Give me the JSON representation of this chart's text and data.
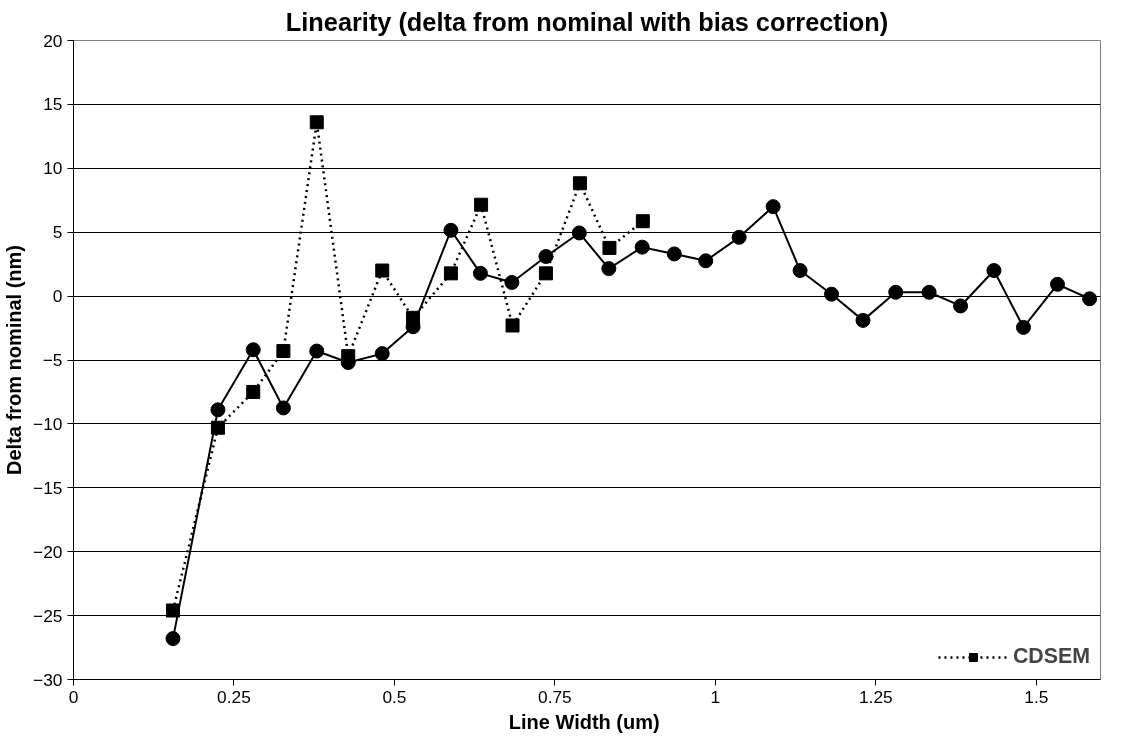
{
  "chart_data": {
    "type": "line",
    "title": "Linearity (delta from nominal with bias correction)",
    "xlabel": "Line Width  (um)",
    "ylabel": "Delta from nominal (nm)",
    "xlim": [
      0,
      1.6
    ],
    "xticks": [
      0,
      0.25,
      0.5,
      0.75,
      1,
      1.25,
      1.5
    ],
    "ylim": [
      -30,
      20
    ],
    "yticks": [
      -30,
      -25,
      -20,
      -15,
      -10,
      -5,
      0,
      5,
      10,
      15,
      20
    ],
    "grid": "y",
    "legend": "bottom right",
    "series": [
      {
        "color": "#000000",
        "marker": "circle",
        "line_style": "solid",
        "x": [
          0.155,
          0.225,
          0.28,
          0.327,
          0.379,
          0.428,
          0.481,
          0.529,
          0.588,
          0.634,
          0.683,
          0.736,
          0.788,
          0.834,
          0.886,
          0.936,
          0.985,
          1.037,
          1.09,
          1.132,
          1.181,
          1.23,
          1.281,
          1.333,
          1.382,
          1.434,
          1.48,
          1.533,
          1.583
        ],
        "values": [
          -26.8,
          -8.9,
          -4.2,
          -8.75,
          -4.3,
          -5.2,
          -4.5,
          -2.4,
          5.15,
          1.78,
          1.07,
          3.1,
          4.94,
          2.15,
          3.83,
          3.3,
          2.76,
          4.6,
          7.0,
          2.0,
          0.15,
          -1.9,
          0.3,
          0.3,
          -0.77,
          2.0,
          -2.45,
          0.92,
          -0.21
        ]
      },
      {
        "name": "CDSEM",
        "color": "#000000",
        "marker": "square",
        "line_style": "dotted",
        "x": [
          0.155,
          0.225,
          0.28,
          0.327,
          0.379,
          0.428,
          0.481,
          0.529,
          0.588,
          0.635,
          0.684,
          0.736,
          0.789,
          0.835,
          0.887
        ],
        "values": [
          -24.6,
          -10.3,
          -7.5,
          -4.3,
          13.6,
          -4.7,
          2.0,
          -1.7,
          1.78,
          7.15,
          -2.3,
          1.78,
          8.83,
          3.77,
          5.86
        ]
      }
    ]
  }
}
